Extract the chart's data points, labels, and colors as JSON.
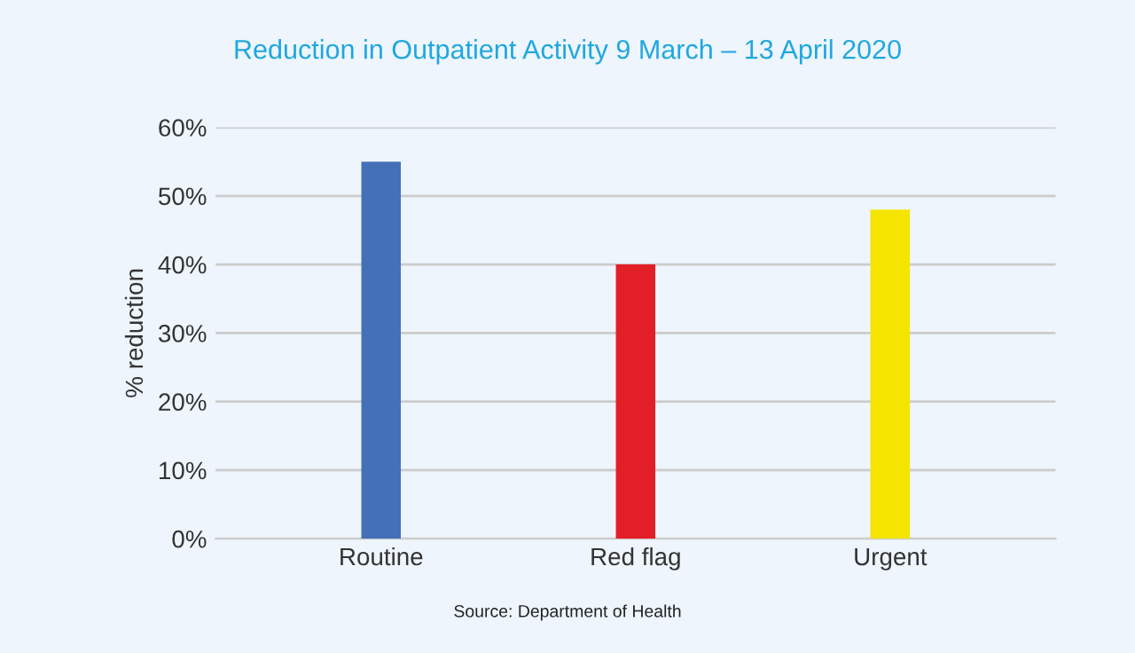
{
  "chart_data": {
    "type": "bar",
    "title": "Reduction in Outpatient Activity 9 March – 13 April 2020",
    "ylabel": "% reduction",
    "categories": [
      "Routine",
      "Red flag",
      "Urgent"
    ],
    "values": [
      55,
      40,
      48
    ],
    "colors": [
      "#4470b8",
      "#e21f26",
      "#f4e400"
    ],
    "ylim": [
      0,
      60
    ],
    "yticks": [
      {
        "value": 0,
        "label": "0%"
      },
      {
        "value": 10,
        "label": "10%"
      },
      {
        "value": 20,
        "label": "20%"
      },
      {
        "value": 30,
        "label": "30%"
      },
      {
        "value": 40,
        "label": "40%"
      },
      {
        "value": 50,
        "label": "50%"
      },
      {
        "value": 60,
        "label": "60%"
      }
    ],
    "grid": "y",
    "legend": false,
    "annotations": [
      "Source: Department of Health"
    ]
  }
}
